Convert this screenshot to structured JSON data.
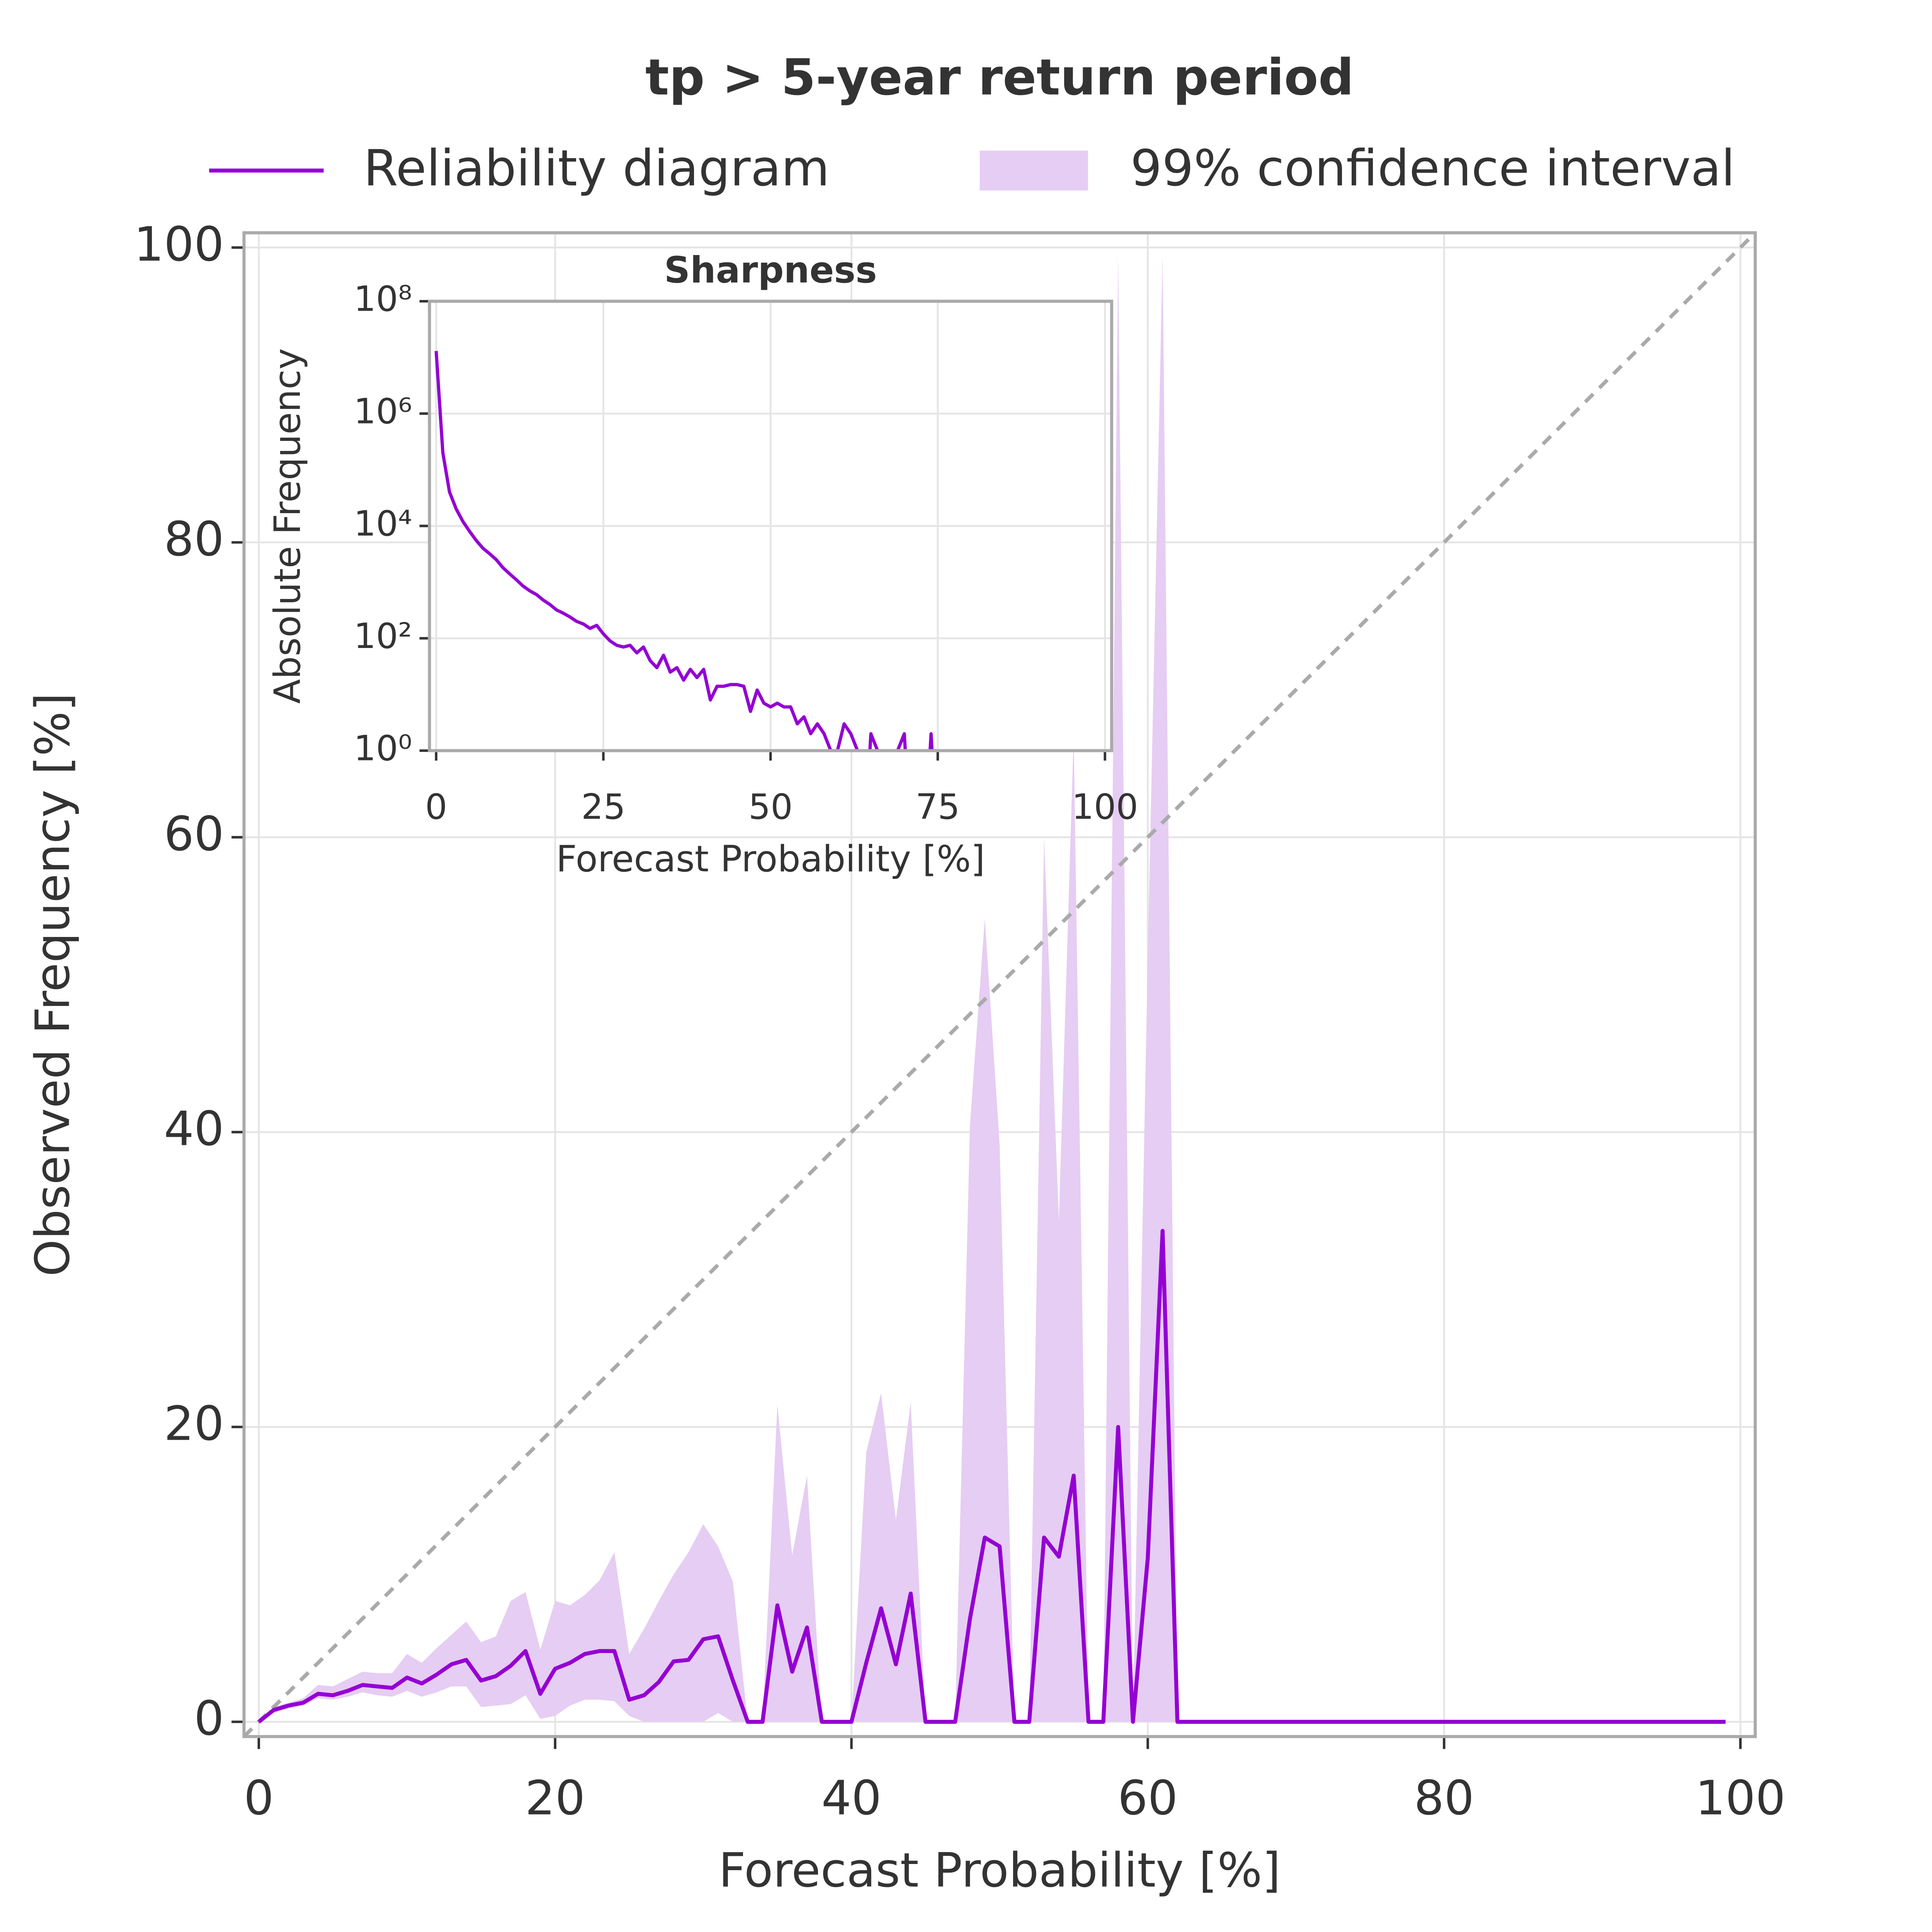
{
  "chart_data": [
    {
      "type": "line",
      "title": "tp > 5-year return period",
      "xlabel": "Forecast Probability [%]",
      "ylabel": "Observed Frequency [%]",
      "xlim": [
        -1,
        101
      ],
      "ylim": [
        -1,
        101
      ],
      "xticks": [
        0,
        20,
        40,
        60,
        80,
        100
      ],
      "yticks": [
        0,
        20,
        40,
        60,
        80,
        100
      ],
      "grid": true,
      "legend": "upper center",
      "x": [
        0,
        1,
        2,
        3,
        4,
        5,
        6,
        7,
        8,
        9,
        10,
        11,
        12,
        13,
        14,
        15,
        16,
        17,
        18,
        19,
        20,
        21,
        22,
        23,
        24,
        25,
        26,
        27,
        28,
        29,
        30,
        31,
        32,
        33,
        34,
        35,
        36,
        37,
        38,
        39,
        40,
        41,
        42,
        43,
        44,
        45,
        46,
        47,
        48,
        49,
        50,
        51,
        52,
        53,
        54,
        55,
        56,
        57,
        58,
        59,
        60,
        61,
        62,
        63,
        64,
        65,
        66,
        67,
        68,
        69,
        70,
        71,
        72,
        73,
        74,
        75,
        76,
        77,
        78,
        79,
        80,
        81,
        82,
        83,
        84,
        85,
        86,
        87,
        88,
        89,
        90,
        91,
        92,
        93,
        94,
        95,
        96,
        97,
        98,
        99
      ],
      "series": [
        {
          "name": "Reliability diagram",
          "color": "#9400d3",
          "values": [
            0,
            0.8,
            1.1,
            1.3,
            1.9,
            1.8,
            2.1,
            2.5,
            2.4,
            2.3,
            3.0,
            2.6,
            3.2,
            3.9,
            4.2,
            2.8,
            3.1,
            3.8,
            4.8,
            1.9,
            3.6,
            4.0,
            4.6,
            4.8,
            4.8,
            1.5,
            1.8,
            2.7,
            4.1,
            4.2,
            5.6,
            5.8,
            2.8,
            0,
            0,
            7.9,
            3.4,
            6.4,
            0,
            0,
            0,
            4.0,
            7.7,
            3.9,
            8.7,
            0,
            0,
            0,
            7.0,
            12.5,
            11.9,
            0,
            0,
            12.5,
            11.2,
            16.7,
            0,
            0,
            20.0,
            0,
            11.1,
            33.3,
            0,
            0,
            0,
            0,
            0,
            0,
            0,
            0,
            0,
            0,
            0,
            0,
            0,
            0,
            0,
            0,
            0,
            0,
            0,
            0,
            0,
            0,
            0,
            0,
            0,
            0,
            0,
            0,
            0,
            0,
            0,
            0,
            0,
            0,
            0,
            0,
            0,
            0
          ]
        }
      ],
      "band": {
        "name": "99% confidence interval",
        "color": "#e6cdf3",
        "x": [
          0,
          1,
          2,
          3,
          4,
          5,
          6,
          7,
          8,
          9,
          10,
          11,
          12,
          13,
          14,
          15,
          16,
          17,
          18,
          19,
          20,
          21,
          22,
          23,
          24,
          25,
          26,
          27,
          28,
          29,
          30,
          31,
          32,
          33,
          34,
          35,
          36,
          37,
          38,
          39,
          40,
          41,
          42,
          43,
          44,
          45,
          46,
          47,
          48,
          49,
          50,
          51,
          52,
          53,
          54,
          55,
          56,
          57,
          58,
          59,
          60,
          61,
          62
        ],
        "upper": [
          0,
          1.0,
          1.3,
          1.6,
          2.5,
          2.4,
          2.9,
          3.4,
          3.3,
          3.3,
          4.6,
          4.0,
          5.0,
          5.9,
          6.8,
          5.4,
          5.8,
          8.2,
          8.8,
          4.9,
          8.2,
          7.9,
          8.6,
          9.6,
          11.5,
          4.6,
          6.3,
          8.2,
          10.0,
          11.5,
          13.4,
          11.9,
          9.5,
          0,
          0,
          21.5,
          11.3,
          16.7,
          0,
          0,
          0,
          18.3,
          22.3,
          13.7,
          21.7,
          0,
          0,
          0,
          40.5,
          54.5,
          39.2,
          0,
          0,
          60.0,
          34.0,
          67.0,
          0,
          0,
          99.5,
          0,
          52.0,
          99.5,
          0
        ],
        "lower": [
          0,
          0.6,
          0.9,
          1.1,
          1.6,
          1.5,
          1.7,
          2.0,
          1.8,
          1.7,
          2.1,
          1.7,
          2.0,
          2.4,
          2.4,
          1.0,
          1.1,
          1.2,
          1.8,
          0.2,
          0.4,
          1.1,
          1.5,
          1.5,
          1.4,
          0.4,
          0,
          0,
          0,
          0,
          0,
          0.6,
          0,
          0,
          0,
          0,
          0,
          0,
          0,
          0,
          0,
          0,
          0,
          0,
          0,
          0,
          0,
          0,
          0,
          0,
          0,
          0,
          0,
          0,
          0,
          0,
          0,
          0,
          0,
          0,
          0,
          0,
          0
        ]
      }
    },
    {
      "type": "line",
      "title": "Sharpness",
      "xlabel": "Forecast Probability [%]",
      "ylabel": "Absolute Frequency",
      "xlim": [
        -1,
        101
      ],
      "ylim": [
        1,
        100000000
      ],
      "yscale": "log",
      "xticks": [
        0,
        25,
        50,
        75,
        100
      ],
      "yticks": [
        {
          "value": 1,
          "label": "10⁰"
        },
        {
          "value": 100,
          "label": "10²"
        },
        {
          "value": 10000,
          "label": "10⁴"
        },
        {
          "value": 1000000,
          "label": "10⁶"
        },
        {
          "value": 100000000,
          "label": "10⁸"
        }
      ],
      "grid": true,
      "x": [
        0,
        1,
        2,
        3,
        4,
        5,
        6,
        7,
        8,
        9,
        10,
        11,
        12,
        13,
        14,
        15,
        16,
        17,
        18,
        19,
        20,
        21,
        22,
        23,
        24,
        25,
        26,
        27,
        28,
        29,
        30,
        31,
        32,
        33,
        34,
        35,
        36,
        37,
        38,
        39,
        40,
        41,
        42,
        43,
        44,
        45,
        46,
        47,
        48,
        49,
        50,
        51,
        52,
        53,
        54,
        55,
        56,
        57,
        58,
        59,
        60,
        61,
        62,
        63,
        64,
        65,
        66,
        67,
        68,
        69,
        70,
        71,
        72,
        73,
        74,
        75
      ],
      "series": [
        {
          "color": "#9400d3",
          "values": [
            13000000,
            200000,
            40000,
            20000,
            12000,
            8000,
            5500,
            4000,
            3200,
            2500,
            1800,
            1400,
            1100,
            850,
            700,
            600,
            480,
            400,
            320,
            280,
            240,
            200,
            180,
            150,
            170,
            120,
            90,
            75,
            70,
            75,
            55,
            70,
            40,
            30,
            50,
            25,
            30,
            18,
            28,
            20,
            28,
            8,
            14,
            14,
            15,
            15,
            14,
            5,
            12,
            7,
            6,
            7,
            6,
            6,
            3,
            4,
            2,
            3,
            2,
            1,
            1,
            3,
            2,
            1,
            0,
            2,
            1,
            0,
            0,
            1,
            2,
            0,
            0,
            0,
            2,
            0
          ]
        }
      ]
    }
  ]
}
